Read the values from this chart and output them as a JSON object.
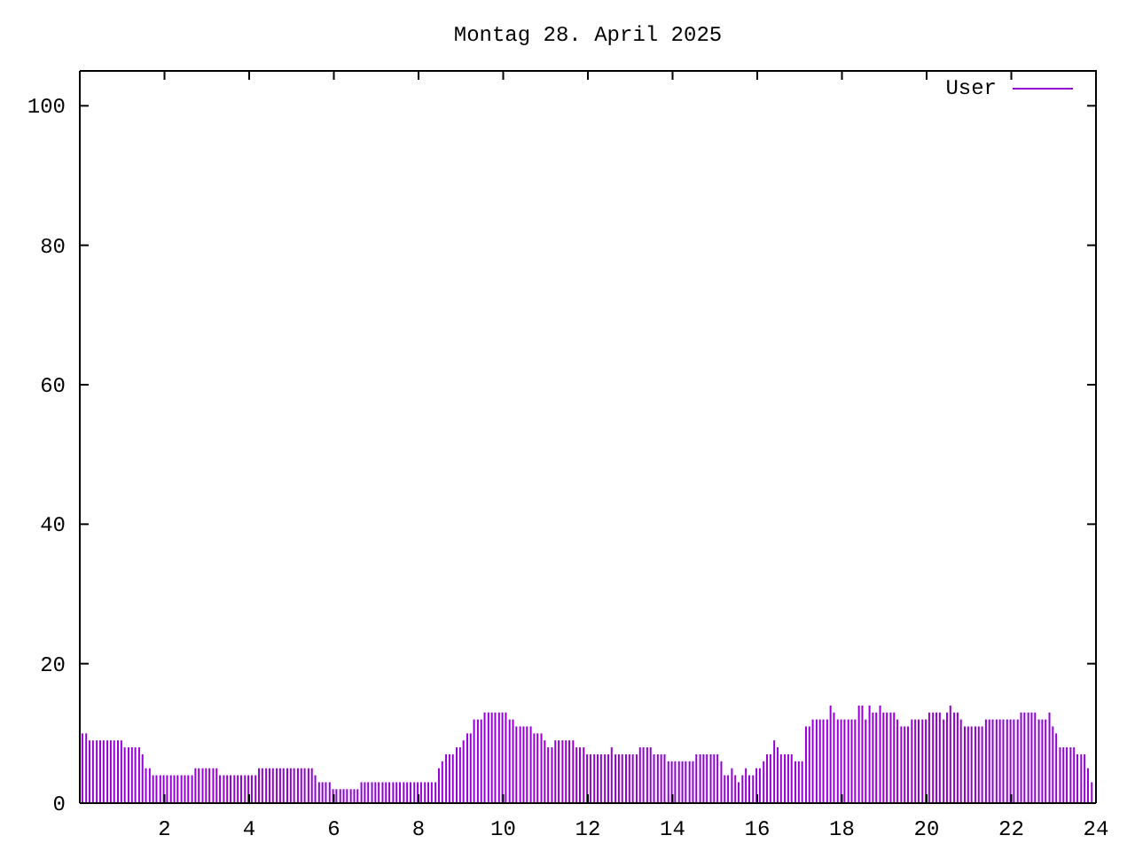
{
  "chart_data": {
    "type": "bar",
    "title": "Montag 28. April 2025",
    "x": [
      0.08,
      0.17,
      0.25,
      0.33,
      0.42,
      0.5,
      0.58,
      0.67,
      0.75,
      0.83,
      0.92,
      1,
      1.08,
      1.17,
      1.25,
      1.33,
      1.42,
      1.5,
      1.58,
      1.67,
      1.75,
      1.83,
      1.92,
      2,
      2.08,
      2.17,
      2.25,
      2.33,
      2.42,
      2.5,
      2.58,
      2.67,
      2.75,
      2.83,
      2.92,
      3,
      3.08,
      3.17,
      3.25,
      3.33,
      3.42,
      3.5,
      3.58,
      3.67,
      3.75,
      3.83,
      3.92,
      4,
      4.08,
      4.17,
      4.25,
      4.33,
      4.42,
      4.5,
      4.58,
      4.67,
      4.75,
      4.83,
      4.92,
      5,
      5.08,
      5.17,
      5.25,
      5.33,
      5.42,
      5.5,
      5.58,
      5.67,
      5.75,
      5.83,
      5.92,
      6,
      6.08,
      6.17,
      6.25,
      6.33,
      6.42,
      6.5,
      6.58,
      6.67,
      6.75,
      6.83,
      6.92,
      7,
      7.08,
      7.17,
      7.25,
      7.33,
      7.42,
      7.5,
      7.58,
      7.67,
      7.75,
      7.83,
      7.92,
      8,
      8.08,
      8.17,
      8.25,
      8.33,
      8.42,
      8.5,
      8.58,
      8.67,
      8.75,
      8.83,
      8.92,
      9,
      9.08,
      9.17,
      9.25,
      9.33,
      9.42,
      9.5,
      9.58,
      9.67,
      9.75,
      9.83,
      9.92,
      10,
      10.08,
      10.17,
      10.25,
      10.33,
      10.42,
      10.5,
      10.58,
      10.67,
      10.75,
      10.83,
      10.92,
      11,
      11.08,
      11.17,
      11.25,
      11.33,
      11.42,
      11.5,
      11.58,
      11.67,
      11.75,
      11.83,
      11.92,
      12,
      12.08,
      12.17,
      12.25,
      12.33,
      12.42,
      12.5,
      12.58,
      12.67,
      12.75,
      12.83,
      12.92,
      13,
      13.08,
      13.17,
      13.25,
      13.33,
      13.42,
      13.5,
      13.58,
      13.67,
      13.75,
      13.83,
      13.92,
      14,
      14.08,
      14.17,
      14.25,
      14.33,
      14.42,
      14.5,
      14.58,
      14.67,
      14.75,
      14.83,
      14.92,
      15,
      15.08,
      15.17,
      15.25,
      15.33,
      15.42,
      15.5,
      15.58,
      15.67,
      15.75,
      15.83,
      15.92,
      16,
      16.08,
      16.17,
      16.25,
      16.33,
      16.42,
      16.5,
      16.58,
      16.67,
      16.75,
      16.83,
      16.92,
      17,
      17.08,
      17.17,
      17.25,
      17.33,
      17.42,
      17.5,
      17.58,
      17.67,
      17.75,
      17.83,
      17.92,
      18,
      18.08,
      18.17,
      18.25,
      18.33,
      18.42,
      18.5,
      18.58,
      18.67,
      18.75,
      18.83,
      18.92,
      19,
      19.08,
      19.17,
      19.25,
      19.33,
      19.42,
      19.5,
      19.58,
      19.67,
      19.75,
      19.83,
      19.92,
      20,
      20.08,
      20.17,
      20.25,
      20.33,
      20.42,
      20.5,
      20.58,
      20.67,
      20.75,
      20.83,
      20.92,
      21,
      21.08,
      21.17,
      21.25,
      21.33,
      21.42,
      21.5,
      21.58,
      21.67,
      21.75,
      21.83,
      21.92,
      22,
      22.08,
      22.17,
      22.25,
      22.33,
      22.42,
      22.5,
      22.58,
      22.67,
      22.75,
      22.83,
      22.92,
      23,
      23.08,
      23.17,
      23.25,
      23.33,
      23.42,
      23.5,
      23.58,
      23.67,
      23.75,
      23.83,
      23.92
    ],
    "series": [
      {
        "name": "User",
        "color": "#9400d3",
        "values": [
          10,
          10,
          9,
          9,
          9,
          9,
          9,
          9,
          9,
          9,
          9,
          9,
          8,
          8,
          8,
          8,
          8,
          7,
          5,
          5,
          4,
          4,
          4,
          4,
          4,
          4,
          4,
          4,
          4,
          4,
          4,
          4,
          5,
          5,
          5,
          5,
          5,
          5,
          5,
          4,
          4,
          4,
          4,
          4,
          4,
          4,
          4,
          4,
          4,
          4,
          5,
          5,
          5,
          5,
          5,
          5,
          5,
          5,
          5,
          5,
          5,
          5,
          5,
          5,
          5,
          5,
          4,
          3,
          3,
          3,
          3,
          2,
          2,
          2,
          2,
          2,
          2,
          2,
          2,
          3,
          3,
          3,
          3,
          3,
          3,
          3,
          3,
          3,
          3,
          3,
          3,
          3,
          3,
          3,
          3,
          3,
          3,
          3,
          3,
          3,
          3,
          5,
          6,
          7,
          7,
          7,
          8,
          8,
          9,
          10,
          10,
          12,
          12,
          12,
          13,
          13,
          13,
          13,
          13,
          13,
          13,
          12,
          12,
          11,
          11,
          11,
          11,
          11,
          10,
          10,
          10,
          9,
          8,
          8,
          9,
          9,
          9,
          9,
          9,
          9,
          8,
          8,
          8,
          7,
          7,
          7,
          7,
          7,
          7,
          7,
          8,
          7,
          7,
          7,
          7,
          7,
          7,
          7,
          8,
          8,
          8,
          8,
          7,
          7,
          7,
          7,
          6,
          6,
          6,
          6,
          6,
          6,
          6,
          6,
          7,
          7,
          7,
          7,
          7,
          7,
          7,
          6,
          4,
          4,
          5,
          4,
          3,
          4,
          5,
          4,
          4,
          5,
          5,
          6,
          7,
          7,
          9,
          8,
          7,
          7,
          7,
          7,
          6,
          6,
          6,
          11,
          11,
          12,
          12,
          12,
          12,
          12,
          14,
          13,
          12,
          12,
          12,
          12,
          12,
          12,
          14,
          14,
          12,
          14,
          13,
          13,
          14,
          13,
          13,
          13,
          13,
          12,
          11,
          11,
          11,
          12,
          12,
          12,
          12,
          12,
          13,
          13,
          13,
          13,
          12,
          13,
          14,
          13,
          13,
          12,
          11,
          11,
          11,
          11,
          11,
          11,
          12,
          12,
          12,
          12,
          12,
          12,
          12,
          12,
          12,
          12,
          13,
          13,
          13,
          13,
          13,
          12,
          12,
          12,
          13,
          11,
          10,
          8,
          8,
          8,
          8,
          8,
          7,
          7,
          7,
          5,
          3
        ]
      }
    ],
    "xlim": [
      0,
      24
    ],
    "xticks": [
      2,
      4,
      6,
      8,
      10,
      12,
      14,
      16,
      18,
      20,
      22,
      24
    ],
    "ylim": [
      0,
      105
    ],
    "yticks": [
      0,
      20,
      40,
      60,
      80,
      100
    ],
    "legend": "top right"
  }
}
